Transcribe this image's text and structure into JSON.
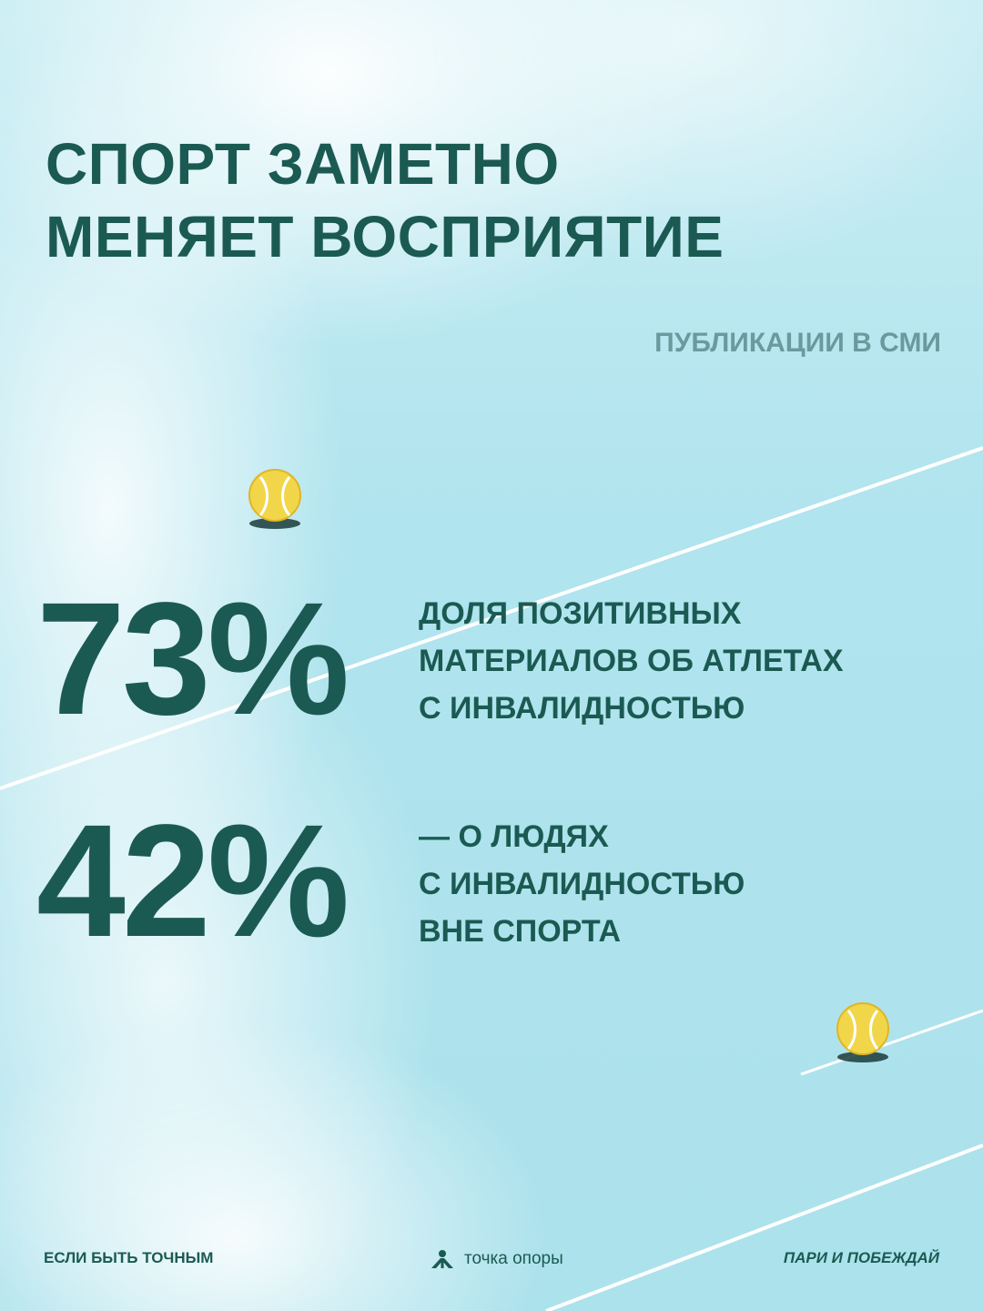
{
  "title": {
    "line1": "СПОРТ ЗАМЕТНО",
    "line2": "МЕНЯЕТ ВОСПРИЯТИЕ"
  },
  "source_label": "ПУБЛИКАЦИИ В СМИ",
  "stats": [
    {
      "value": "73%",
      "lines": [
        "ДОЛЯ ПОЗИТИВНЫХ",
        "МАТЕРИАЛОВ ОБ АТЛЕТАХ",
        "С ИНВАЛИДНОСТЬЮ"
      ]
    },
    {
      "value": "42%",
      "lines": [
        "— О ЛЮДЯХ",
        "С ИНВАЛИДНОСТЬЮ",
        "ВНЕ СПОРТА"
      ]
    }
  ],
  "footer": {
    "left": "ЕСЛИ БЫТЬ ТОЧНЫМ",
    "center": "точка опоры",
    "right": "ПАРИ И ПОБЕЖДАЙ"
  },
  "colors": {
    "text": "#1b5a52",
    "muted": "#6b9a9e",
    "ball": "#f2d64a",
    "court_line": "#ffffff"
  },
  "icons": [
    "tennis-ball-icon",
    "tochka-opory-logo-icon"
  ]
}
